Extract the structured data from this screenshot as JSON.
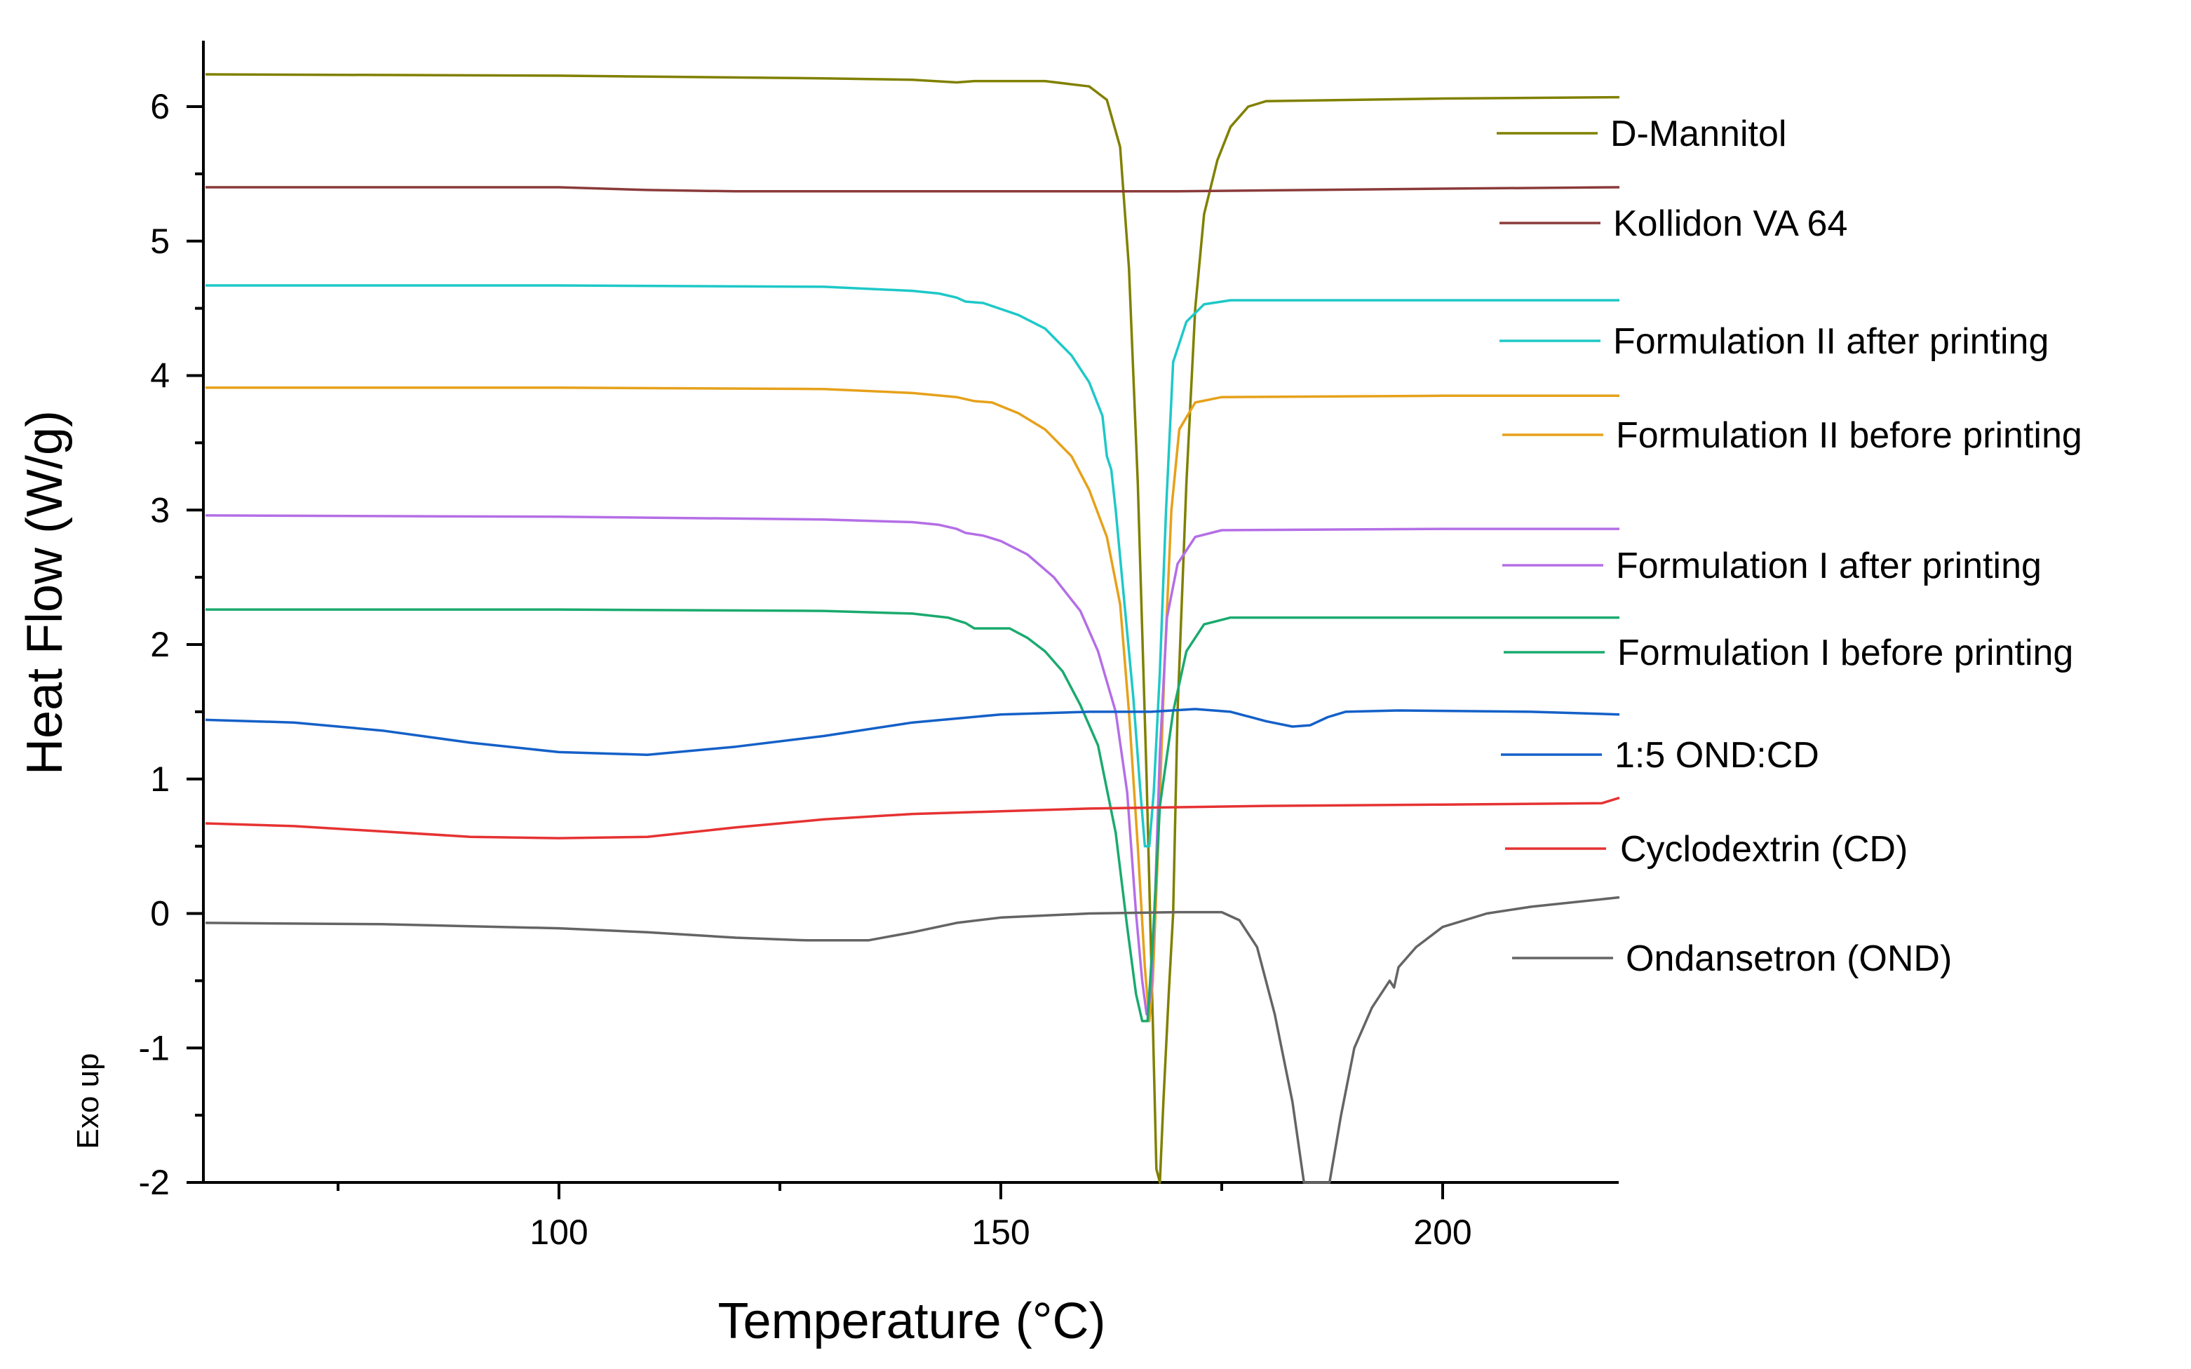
{
  "chart_data": {
    "type": "line",
    "title": "",
    "xlabel": "Temperature (°C)",
    "ylabel": "Heat Flow (W/g)",
    "annotation": "Exo up",
    "xlim": [
      60,
      220
    ],
    "ylim": [
      -2,
      6.5
    ],
    "xticks": [
      100,
      150,
      200
    ],
    "xticks_minor": [
      75,
      125,
      175
    ],
    "yticks": [
      -2,
      -1,
      0,
      1,
      2,
      3,
      4,
      5,
      6
    ],
    "legend_position": "right",
    "series": [
      {
        "name": "D-Mannitol",
        "color": "#808000",
        "points": [
          [
            60,
            6.24
          ],
          [
            100,
            6.23
          ],
          [
            130,
            6.21
          ],
          [
            140,
            6.2
          ],
          [
            145,
            6.18
          ],
          [
            147,
            6.19
          ],
          [
            155,
            6.19
          ],
          [
            160,
            6.15
          ],
          [
            162,
            6.05
          ],
          [
            163.5,
            5.7
          ],
          [
            164.5,
            4.8
          ],
          [
            165.5,
            3.2
          ],
          [
            166.5,
            1.0
          ],
          [
            167.2,
            -0.8
          ],
          [
            167.6,
            -1.9
          ],
          [
            168,
            -2.0
          ],
          [
            168.4,
            -1.4
          ],
          [
            169,
            -0.6
          ],
          [
            169.5,
            0.0
          ],
          [
            170,
            1.5
          ],
          [
            171,
            3.2
          ],
          [
            172,
            4.5
          ],
          [
            173,
            5.2
          ],
          [
            174.5,
            5.6
          ],
          [
            176,
            5.85
          ],
          [
            178,
            6.0
          ],
          [
            180,
            6.04
          ],
          [
            200,
            6.06
          ],
          [
            220,
            6.07
          ]
        ]
      },
      {
        "name": "Kollidon VA 64",
        "color": "#8b3a3a",
        "points": [
          [
            60,
            5.4
          ],
          [
            100,
            5.4
          ],
          [
            110,
            5.38
          ],
          [
            120,
            5.37
          ],
          [
            140,
            5.37
          ],
          [
            170,
            5.37
          ],
          [
            200,
            5.39
          ],
          [
            220,
            5.4
          ]
        ]
      },
      {
        "name": "Formulation II after printing",
        "color": "#1ec8c8",
        "points": [
          [
            60,
            4.67
          ],
          [
            100,
            4.67
          ],
          [
            130,
            4.66
          ],
          [
            140,
            4.63
          ],
          [
            143,
            4.61
          ],
          [
            145,
            4.58
          ],
          [
            146,
            4.55
          ],
          [
            148,
            4.54
          ],
          [
            152,
            4.45
          ],
          [
            155,
            4.35
          ],
          [
            158,
            4.15
          ],
          [
            160,
            3.95
          ],
          [
            161.5,
            3.7
          ],
          [
            162,
            3.4
          ],
          [
            162.5,
            3.3
          ],
          [
            163,
            3.0
          ],
          [
            164,
            2.3
          ],
          [
            165,
            1.6
          ],
          [
            165.8,
            0.9
          ],
          [
            166.3,
            0.5
          ],
          [
            166.8,
            0.5
          ],
          [
            167.3,
            0.9
          ],
          [
            168,
            1.8
          ],
          [
            168.7,
            3.0
          ],
          [
            169.5,
            4.1
          ],
          [
            171,
            4.4
          ],
          [
            173,
            4.53
          ],
          [
            176,
            4.56
          ],
          [
            200,
            4.56
          ],
          [
            220,
            4.56
          ]
        ]
      },
      {
        "name": "Formulation II before printing",
        "color": "#e6a11a",
        "points": [
          [
            60,
            3.91
          ],
          [
            100,
            3.91
          ],
          [
            130,
            3.9
          ],
          [
            140,
            3.87
          ],
          [
            145,
            3.84
          ],
          [
            147,
            3.81
          ],
          [
            149,
            3.8
          ],
          [
            152,
            3.72
          ],
          [
            155,
            3.6
          ],
          [
            158,
            3.4
          ],
          [
            160,
            3.15
          ],
          [
            162,
            2.8
          ],
          [
            163.5,
            2.3
          ],
          [
            164.5,
            1.5
          ],
          [
            165.5,
            0.5
          ],
          [
            166.3,
            -0.4
          ],
          [
            166.8,
            -0.8
          ],
          [
            167.2,
            -0.5
          ],
          [
            167.8,
            0.5
          ],
          [
            168.5,
            1.8
          ],
          [
            169.3,
            3.0
          ],
          [
            170.2,
            3.6
          ],
          [
            172,
            3.8
          ],
          [
            175,
            3.84
          ],
          [
            200,
            3.85
          ],
          [
            220,
            3.85
          ]
        ]
      },
      {
        "name": "Formulation I after printing",
        "color": "#b46ee6",
        "points": [
          [
            60,
            2.96
          ],
          [
            100,
            2.95
          ],
          [
            130,
            2.93
          ],
          [
            140,
            2.91
          ],
          [
            143,
            2.89
          ],
          [
            145,
            2.86
          ],
          [
            146,
            2.83
          ],
          [
            148,
            2.81
          ],
          [
            150,
            2.77
          ],
          [
            153,
            2.67
          ],
          [
            156,
            2.5
          ],
          [
            159,
            2.25
          ],
          [
            161,
            1.95
          ],
          [
            163,
            1.5
          ],
          [
            164.3,
            0.9
          ],
          [
            165.3,
            0.0
          ],
          [
            166,
            -0.5
          ],
          [
            166.5,
            -0.75
          ],
          [
            167,
            -0.6
          ],
          [
            167.5,
            0.2
          ],
          [
            168,
            1.2
          ],
          [
            168.8,
            2.2
          ],
          [
            170,
            2.6
          ],
          [
            172,
            2.8
          ],
          [
            175,
            2.85
          ],
          [
            200,
            2.86
          ],
          [
            220,
            2.86
          ]
        ]
      },
      {
        "name": "Formulation I before printing",
        "color": "#1aaa6e",
        "points": [
          [
            60,
            2.26
          ],
          [
            100,
            2.26
          ],
          [
            130,
            2.25
          ],
          [
            140,
            2.23
          ],
          [
            144,
            2.2
          ],
          [
            146,
            2.16
          ],
          [
            147,
            2.12
          ],
          [
            151,
            2.12
          ],
          [
            153,
            2.05
          ],
          [
            155,
            1.95
          ],
          [
            157,
            1.8
          ],
          [
            159,
            1.55
          ],
          [
            161,
            1.25
          ],
          [
            163,
            0.6
          ],
          [
            164.3,
            -0.1
          ],
          [
            165.3,
            -0.6
          ],
          [
            166,
            -0.8
          ],
          [
            166.6,
            -0.8
          ],
          [
            167.2,
            -0.2
          ],
          [
            168,
            0.8
          ],
          [
            169.5,
            1.5
          ],
          [
            171,
            1.95
          ],
          [
            173,
            2.15
          ],
          [
            176,
            2.2
          ],
          [
            200,
            2.2
          ],
          [
            220,
            2.2
          ]
        ]
      },
      {
        "name": "1:5 OND:CD",
        "color": "#1460c8",
        "points": [
          [
            60,
            1.44
          ],
          [
            70,
            1.42
          ],
          [
            80,
            1.36
          ],
          [
            90,
            1.27
          ],
          [
            100,
            1.2
          ],
          [
            110,
            1.18
          ],
          [
            120,
            1.24
          ],
          [
            130,
            1.32
          ],
          [
            140,
            1.42
          ],
          [
            150,
            1.48
          ],
          [
            160,
            1.5
          ],
          [
            167,
            1.5
          ],
          [
            172,
            1.52
          ],
          [
            176,
            1.5
          ],
          [
            180,
            1.43
          ],
          [
            183,
            1.39
          ],
          [
            185,
            1.4
          ],
          [
            187,
            1.46
          ],
          [
            189,
            1.5
          ],
          [
            195,
            1.51
          ],
          [
            210,
            1.5
          ],
          [
            220,
            1.48
          ]
        ]
      },
      {
        "name": "Cyclodextrin (CD)",
        "color": "#e63232",
        "points": [
          [
            60,
            0.67
          ],
          [
            70,
            0.65
          ],
          [
            80,
            0.61
          ],
          [
            90,
            0.57
          ],
          [
            100,
            0.56
          ],
          [
            110,
            0.57
          ],
          [
            120,
            0.64
          ],
          [
            130,
            0.7
          ],
          [
            140,
            0.74
          ],
          [
            150,
            0.76
          ],
          [
            160,
            0.78
          ],
          [
            170,
            0.79
          ],
          [
            180,
            0.8
          ],
          [
            200,
            0.81
          ],
          [
            218,
            0.82
          ],
          [
            220,
            0.86
          ]
        ]
      },
      {
        "name": "Ondansetron (OND)",
        "color": "#646464",
        "points": [
          [
            60,
            -0.07
          ],
          [
            80,
            -0.08
          ],
          [
            100,
            -0.11
          ],
          [
            110,
            -0.14
          ],
          [
            120,
            -0.18
          ],
          [
            128,
            -0.2
          ],
          [
            135,
            -0.2
          ],
          [
            140,
            -0.14
          ],
          [
            145,
            -0.07
          ],
          [
            150,
            -0.03
          ],
          [
            160,
            0.0
          ],
          [
            170,
            0.01
          ],
          [
            175,
            0.01
          ],
          [
            177,
            -0.05
          ],
          [
            179,
            -0.25
          ],
          [
            181,
            -0.75
          ],
          [
            183,
            -1.4
          ],
          [
            184.3,
            -2.0
          ],
          [
            187.2,
            -2.0
          ],
          [
            188.5,
            -1.5
          ],
          [
            190,
            -1.0
          ],
          [
            192,
            -0.7
          ],
          [
            194,
            -0.5
          ],
          [
            194.5,
            -0.55
          ],
          [
            195,
            -0.4
          ],
          [
            197,
            -0.25
          ],
          [
            200,
            -0.1
          ],
          [
            205,
            0.0
          ],
          [
            210,
            0.05
          ],
          [
            220,
            0.12
          ]
        ]
      }
    ]
  }
}
